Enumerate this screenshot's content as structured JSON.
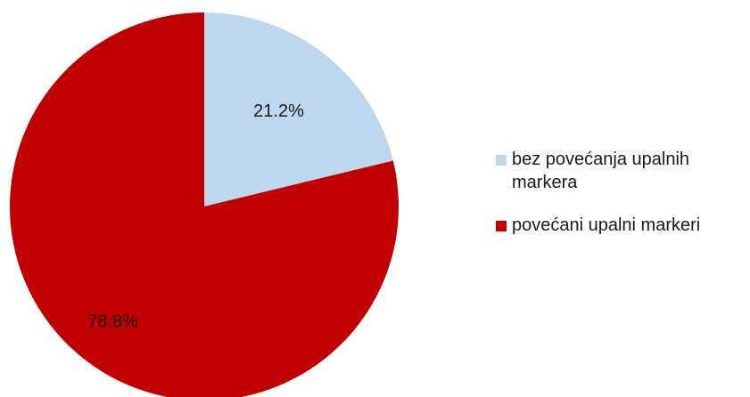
{
  "chart_data": {
    "type": "pie",
    "title": "",
    "categories": [
      "bez povećanja upalnih markera",
      "povećani upalni markeri"
    ],
    "values": [
      21.2,
      78.8
    ],
    "value_labels": [
      "21.2%",
      "78.8%"
    ],
    "colors": [
      "#bdd7ee",
      "#c00000"
    ],
    "legend_position": "right",
    "start_angle_deg": 0,
    "direction": "clockwise"
  }
}
